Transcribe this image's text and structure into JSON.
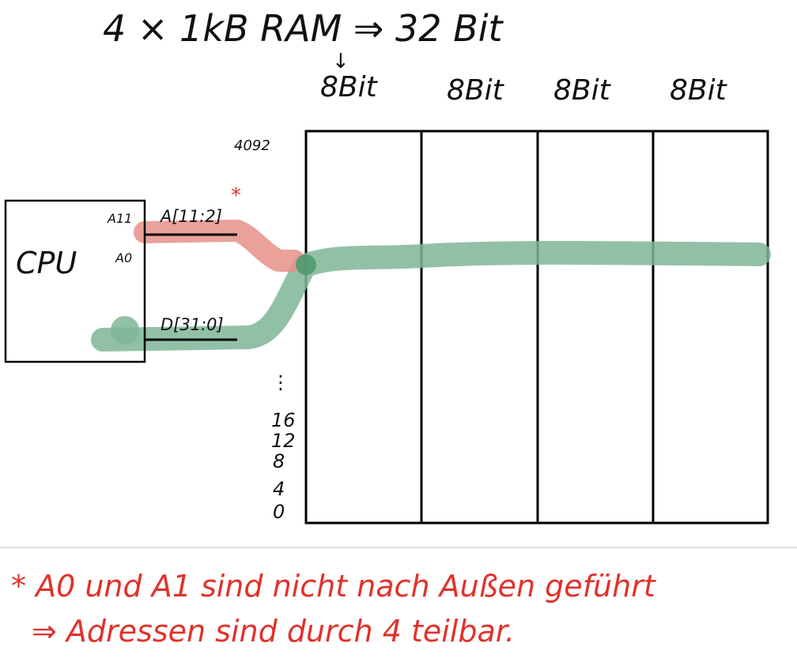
{
  "header": {
    "title": "4 × 1kB RAM ⇒ 32 Bit",
    "arrow": "↓",
    "column_labels": [
      "8Bit",
      "8Bit",
      "8Bit",
      "8Bit"
    ]
  },
  "memory": {
    "top_address": "4092",
    "address_labels": [
      "⋮",
      "16",
      "12",
      "8",
      "4",
      "0"
    ]
  },
  "cpu": {
    "label": "CPU",
    "pin_a11": "A11",
    "pin_a0": "A0",
    "address_bus": "A[11:2]",
    "data_bus": "D[31:0]",
    "asterisk": "*"
  },
  "note": {
    "line1": "* A0 und A1 sind nicht nach Außen geführt",
    "line2": "⇒ Adressen sind durch 4 teilbar."
  },
  "colors": {
    "data_bus": "#7fb596",
    "address_bus": "#e59088",
    "note": "#e0322a",
    "divider": "#cfd8df"
  }
}
